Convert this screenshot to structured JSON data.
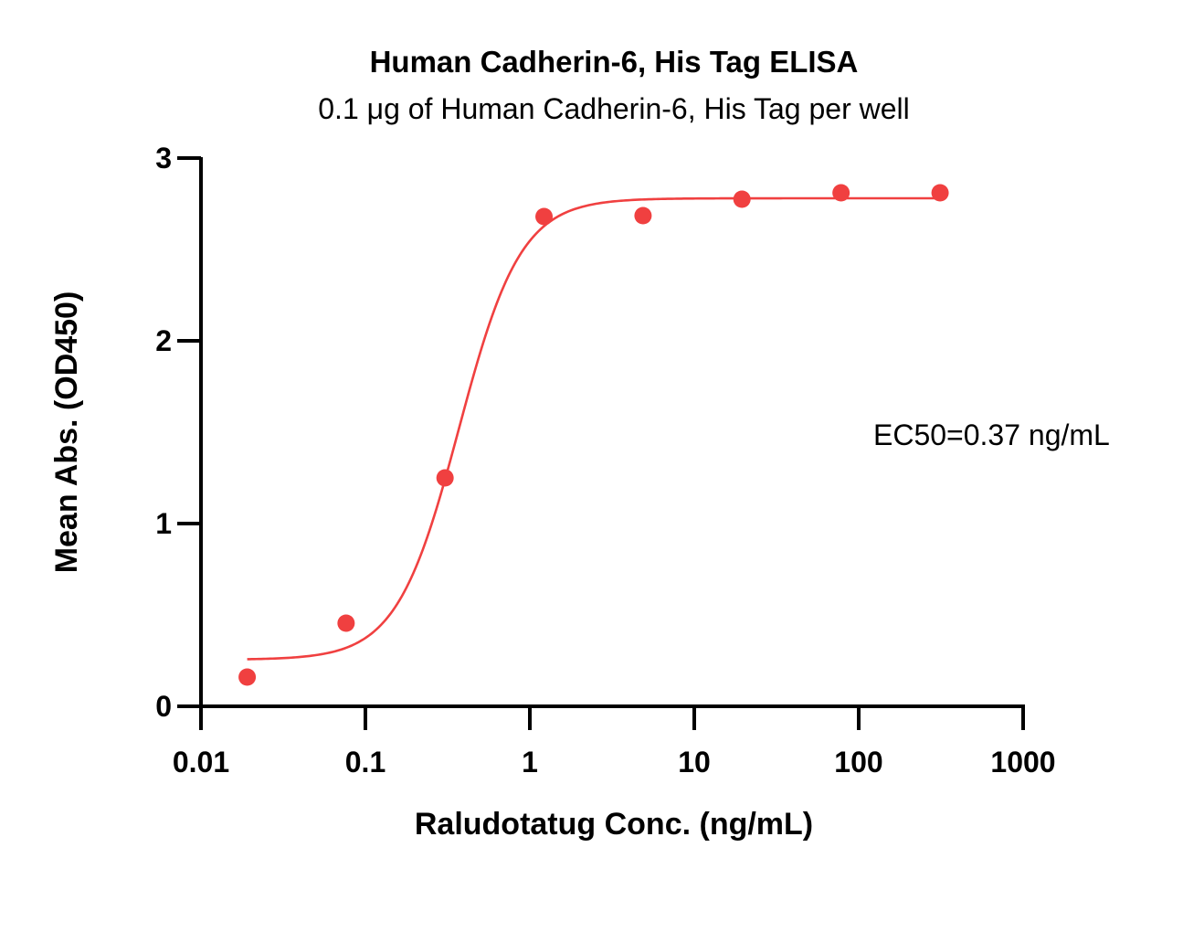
{
  "chart_data": {
    "type": "scatter",
    "title": "Human Cadherin-6, His Tag ELISA",
    "subtitle": "0.1 μg of Human Cadherin-6, His Tag per well",
    "xlabel": "Raludotatug Conc. (ng/mL)",
    "ylabel": "Mean Abs. (OD450)",
    "x_scale": "log",
    "xlim": [
      0.01,
      1000
    ],
    "ylim": [
      0,
      3
    ],
    "x_ticks": [
      0.01,
      0.1,
      1,
      10,
      100,
      1000
    ],
    "x_tick_labels": [
      "0.01",
      "0.1",
      "1",
      "10",
      "100",
      "1000"
    ],
    "y_ticks": [
      0,
      1,
      2,
      3
    ],
    "y_tick_labels": [
      "0",
      "1",
      "2",
      "3"
    ],
    "grid": false,
    "legend": "none",
    "color": "#f04040",
    "series": [
      {
        "x": [
          0.0191,
          0.0763,
          0.305,
          1.22,
          4.88,
          19.5,
          78.1,
          312.5
        ],
        "y": [
          0.16,
          0.455,
          1.25,
          2.68,
          2.685,
          2.775,
          2.81,
          2.81
        ]
      }
    ],
    "fit": {
      "model": "4PL",
      "bottom": 0.255,
      "top": 2.78,
      "ec50": 0.37,
      "hill": 2.3,
      "x_range": [
        0.0191,
        312.5
      ]
    },
    "annotations": [
      "EC50=0.37 ng/mL"
    ]
  }
}
